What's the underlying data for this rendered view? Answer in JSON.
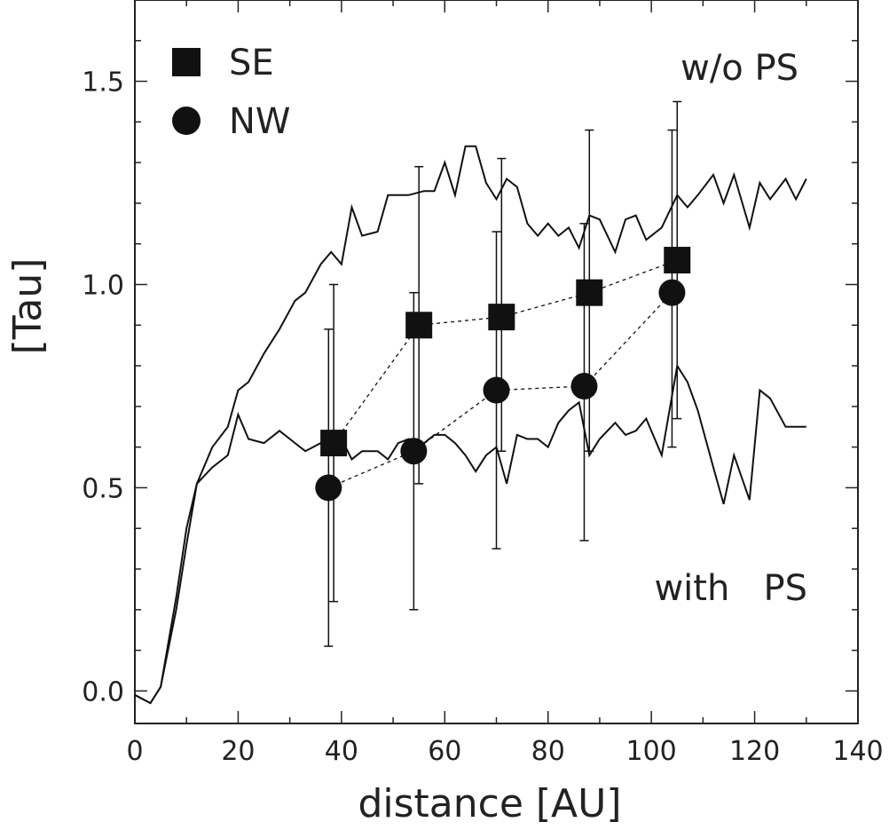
{
  "chart_data": {
    "type": "scatter",
    "xlabel": "distance [AU]",
    "ylabel": "[Tau]",
    "xlim": [
      0,
      140
    ],
    "ylim": [
      -0.08,
      1.7
    ],
    "xticks": [
      "0",
      "20",
      "40",
      "60",
      "80",
      "100",
      "120",
      "140"
    ],
    "yticks": [
      "0.0",
      "0.5",
      "1.0",
      "1.5"
    ],
    "grid": false,
    "legend_position": "top-left",
    "annotations": {
      "top": "w/o PS",
      "bottom": "with   PS"
    },
    "series": [
      {
        "name": "SE",
        "marker": "square",
        "connector": "dotted",
        "x": [
          38.5,
          55,
          71,
          88,
          105
        ],
        "y": [
          0.61,
          0.9,
          0.92,
          0.98,
          1.06
        ],
        "yerr_low": [
          0.22,
          0.51,
          0.59,
          0.59,
          0.67
        ],
        "yerr_high": [
          1.0,
          1.29,
          1.31,
          1.38,
          1.45
        ]
      },
      {
        "name": "NW",
        "marker": "circle",
        "connector": "dotted",
        "x": [
          37.5,
          54,
          70,
          87,
          104
        ],
        "y": [
          0.5,
          0.59,
          0.74,
          0.75,
          0.98
        ],
        "yerr_low": [
          0.11,
          0.2,
          0.35,
          0.37,
          0.6
        ],
        "yerr_high": [
          0.89,
          0.98,
          1.13,
          1.15,
          1.38
        ]
      },
      {
        "name": "",
        "marker": "none",
        "connector": "solid",
        "x": [
          0,
          3,
          5,
          8,
          10,
          12,
          15,
          18,
          20,
          22,
          25,
          28,
          31,
          33,
          36,
          38,
          40,
          42,
          44,
          47,
          49,
          51,
          53,
          56,
          58,
          60,
          62,
          64,
          66,
          68,
          70,
          72,
          74,
          76,
          78,
          80,
          82,
          84,
          86,
          88,
          90,
          93,
          95,
          97,
          99,
          102,
          105,
          107,
          109,
          112,
          114,
          116,
          119,
          121,
          123,
          126,
          128,
          130
        ],
        "y": [
          -0.01,
          -0.03,
          0.01,
          0.2,
          0.36,
          0.51,
          0.6,
          0.65,
          0.74,
          0.76,
          0.83,
          0.89,
          0.96,
          0.98,
          1.05,
          1.08,
          1.05,
          1.19,
          1.12,
          1.13,
          1.22,
          1.22,
          1.22,
          1.23,
          1.23,
          1.3,
          1.22,
          1.34,
          1.34,
          1.25,
          1.21,
          1.26,
          1.24,
          1.15,
          1.12,
          1.15,
          1.12,
          1.14,
          1.09,
          1.17,
          1.16,
          1.08,
          1.16,
          1.17,
          1.11,
          1.14,
          1.22,
          1.19,
          1.22,
          1.27,
          1.2,
          1.27,
          1.14,
          1.25,
          1.21,
          1.26,
          1.21,
          1.26
        ]
      },
      {
        "name": "",
        "marker": "none",
        "connector": "solid",
        "x": [
          0,
          3,
          5,
          8,
          10,
          12,
          15,
          18,
          20,
          22,
          25,
          28,
          31,
          33,
          36,
          38,
          40,
          42,
          44,
          47,
          49,
          51,
          53,
          56,
          58,
          60,
          62,
          64,
          66,
          68,
          70,
          72,
          74,
          76,
          78,
          80,
          82,
          84,
          86,
          88,
          90,
          93,
          95,
          97,
          99,
          102,
          105,
          107,
          109,
          112,
          114,
          116,
          119,
          121,
          123,
          126,
          128,
          130
        ],
        "y": [
          -0.01,
          -0.03,
          0.01,
          0.23,
          0.4,
          0.51,
          0.55,
          0.58,
          0.68,
          0.62,
          0.61,
          0.64,
          0.61,
          0.59,
          0.61,
          0.59,
          0.62,
          0.57,
          0.59,
          0.59,
          0.57,
          0.61,
          0.62,
          0.61,
          0.63,
          0.63,
          0.61,
          0.58,
          0.54,
          0.58,
          0.6,
          0.51,
          0.63,
          0.62,
          0.62,
          0.6,
          0.66,
          0.69,
          0.71,
          0.58,
          0.62,
          0.66,
          0.63,
          0.64,
          0.67,
          0.58,
          0.8,
          0.76,
          0.69,
          0.55,
          0.46,
          0.58,
          0.47,
          0.74,
          0.72,
          0.65,
          0.65,
          0.65
        ]
      }
    ]
  }
}
